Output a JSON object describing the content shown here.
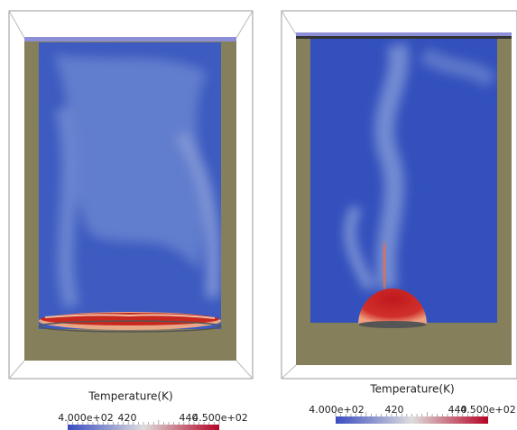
{
  "panels": [
    {
      "colorbar": {
        "title": "Temperature(K)",
        "labels": [
          "4.000e+02",
          "420",
          "440",
          "4.500e+02"
        ]
      }
    },
    {
      "colorbar": {
        "title": "Temperature(K)",
        "labels": [
          "4.000e+02",
          "420",
          "440",
          "4.500e+02"
        ]
      }
    }
  ]
}
